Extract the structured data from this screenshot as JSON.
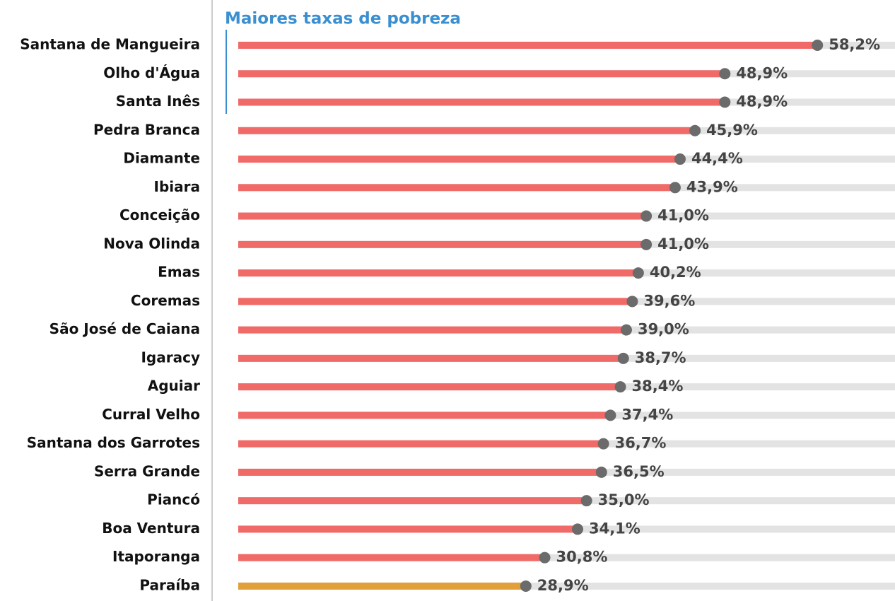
{
  "chart_data": {
    "type": "bar",
    "orientation": "horizontal",
    "title": "Maiores taxas de pobreza",
    "categories": [
      "Santana de Mangueira",
      "Olho d'Água",
      "Santa Inês",
      "Pedra Branca",
      "Diamante",
      "Ibiara",
      "Conceição",
      "Nova Olinda",
      "Emas",
      "Coremas",
      "São José de Caiana",
      "Igaracy",
      "Aguiar",
      "Curral Velho",
      "Santana dos Garrotes",
      "Serra Grande",
      "Piancó",
      "Boa Ventura",
      "Itaporanga",
      "Paraíba"
    ],
    "values": [
      58.2,
      48.9,
      48.9,
      45.9,
      44.4,
      43.9,
      41.0,
      41.0,
      40.2,
      39.6,
      39.0,
      38.7,
      38.4,
      37.4,
      36.7,
      36.5,
      35.0,
      34.1,
      30.8,
      28.9
    ],
    "value_labels": [
      "58,2%",
      "48,9%",
      "48,9%",
      "45,9%",
      "44,4%",
      "43,9%",
      "41,0%",
      "41,0%",
      "40,2%",
      "39,6%",
      "39,0%",
      "38,7%",
      "38,4%",
      "37,4%",
      "36,7%",
      "36,5%",
      "35,0%",
      "34,1%",
      "30,8%",
      "28,9%"
    ],
    "colors": [
      "#f06a68",
      "#f06a68",
      "#f06a68",
      "#f06a68",
      "#f06a68",
      "#f06a68",
      "#f06a68",
      "#f06a68",
      "#f06a68",
      "#f06a68",
      "#f06a68",
      "#f06a68",
      "#f06a68",
      "#f06a68",
      "#f06a68",
      "#f06a68",
      "#f06a68",
      "#f06a68",
      "#f06a68",
      "#e3a03a"
    ],
    "xlim": [
      0,
      66
    ]
  }
}
